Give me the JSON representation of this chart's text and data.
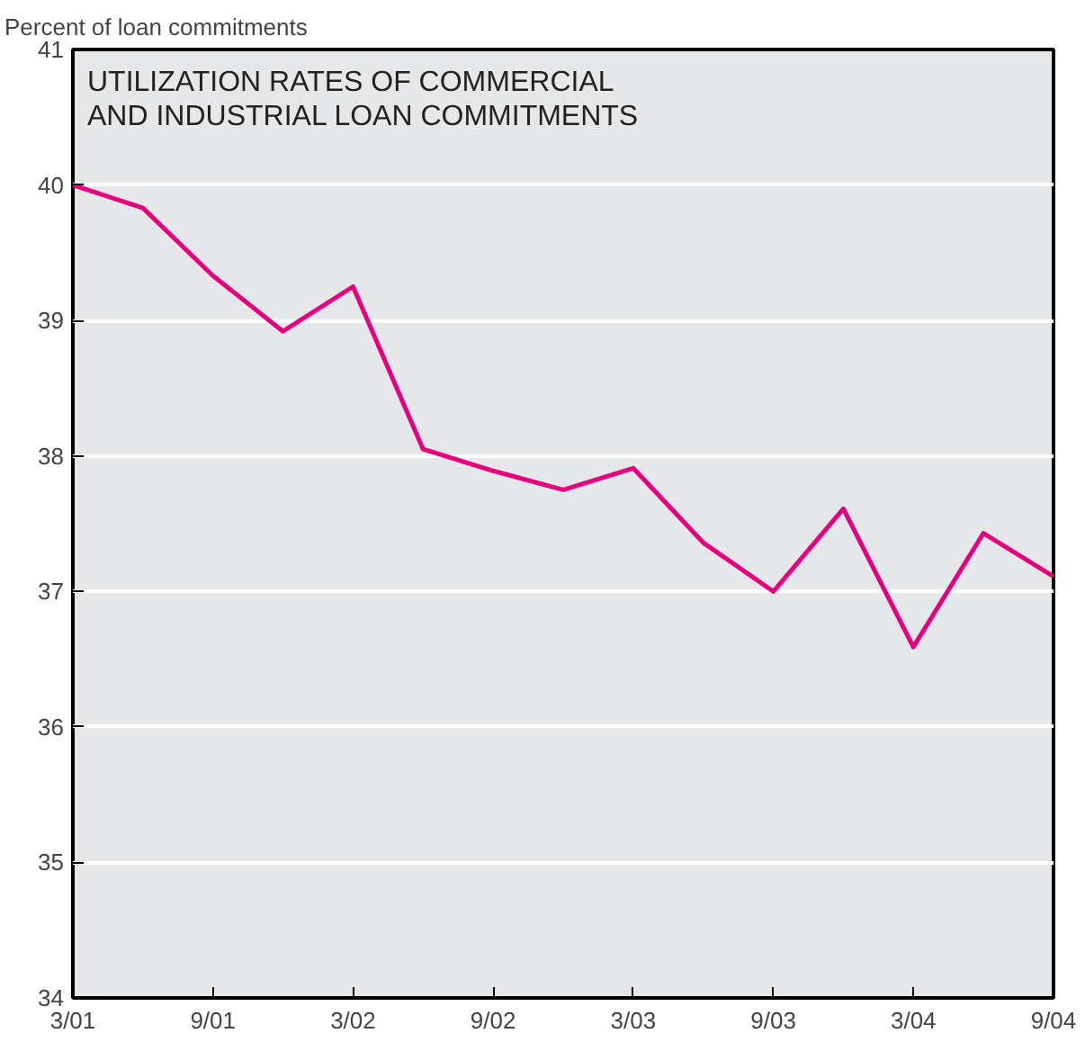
{
  "chart_data": {
    "type": "line",
    "title": "UTILIZATION RATES OF COMMERCIAL AND INDUSTRIAL LOAN COMMITMENTS",
    "ylabel": "Percent of loan commitments",
    "categories": [
      "3/01",
      null,
      "9/01",
      null,
      "3/02",
      null,
      "9/02",
      null,
      "3/03",
      null,
      "9/03",
      null,
      "3/04",
      null,
      "9/04"
    ],
    "series": [
      {
        "color": "#e6007e",
        "values": [
          40.0,
          39.83,
          39.33,
          38.92,
          39.25,
          38.05,
          37.89,
          37.75,
          37.91,
          37.36,
          37.0,
          37.61,
          36.59,
          37.43,
          37.11
        ]
      }
    ],
    "ylim": [
      34,
      41
    ],
    "yticks": [
      34,
      35,
      36,
      37,
      38,
      39,
      40,
      41
    ],
    "grid": "y",
    "marker": "none",
    "line_style": "solid"
  }
}
